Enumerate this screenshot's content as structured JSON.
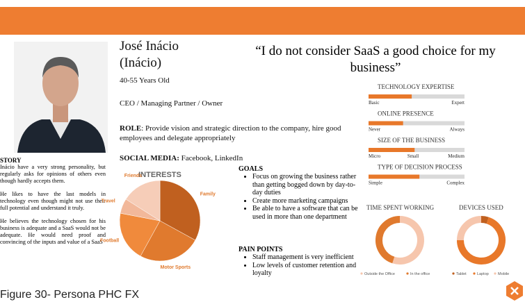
{
  "header": {
    "name": "José Inácio",
    "nickname": "(Inácio)",
    "age": "40-55 Years Old",
    "job": "CEO /  Managing Partner / Owner",
    "role_label": "ROLE",
    "role": ": Provide vision and strategic direction to the company, hire good employees and delegate appropriately",
    "social_label": "SOCIAL MEDIA:",
    "social": " Facebook, LinkedIn"
  },
  "quote": "“I do not consider SaaS a good choice for my business”",
  "story": {
    "title": "STORY",
    "paragraphs": [
      "Inácio have a very strong personality, but regularly asks for opinions of others even though hardly accepts them.",
      "He likes to have the last models in technology even though might not use their full potential and understand it truly.",
      "He believes the technology chosen for his business is adequate and a SaaS would not be adequate. He would need proof and convincing of the inputs and value of a SaaS"
    ]
  },
  "interests": {
    "type": "pie",
    "title": "INTERESTS",
    "categories": [
      "Family",
      "Motor Sports",
      "Football",
      "Travel",
      "Friends"
    ],
    "values": [
      33,
      25,
      20,
      6,
      16
    ],
    "colors": [
      "#c0601f",
      "#e07a2e",
      "#f08a3c",
      "#f2b89a",
      "#f6cdb8"
    ]
  },
  "goals": {
    "title": "GOALS",
    "items": [
      "Focus on growing the business rather than getting bogged down by day-to-day duties",
      "Create more marketing campaigns",
      "Be able to have a software that can be used in more than one department"
    ]
  },
  "pain_points": {
    "title": "PAIN POINTS",
    "items": [
      "Staff management is very inefficient",
      "Low levels of customer retention and loyalty"
    ]
  },
  "scales": [
    {
      "title": "TECHNOLOGY EXPERTISE",
      "labels": [
        "Basic",
        "Expert"
      ],
      "value": 45
    },
    {
      "title": "ONLINE PRESENCE",
      "labels": [
        "Never",
        "Always"
      ],
      "value": 36
    },
    {
      "title": "SIZE OF THE BUSINESS",
      "labels": [
        "Micro",
        "Small",
        "Medium"
      ],
      "value": 48
    },
    {
      "title": "TYPE OF DECISION PROCESS",
      "labels": [
        "Simple",
        "Complex"
      ],
      "value": 53
    }
  ],
  "time_spent": {
    "type": "donut",
    "title": "TIME SPENT WORKING",
    "categories": [
      "Outside the Office",
      "In the office"
    ],
    "values": [
      55,
      45
    ],
    "colors": [
      "#f6c6ad",
      "#e07a2e"
    ]
  },
  "devices": {
    "type": "donut",
    "title": "DEVICES USED",
    "categories": [
      "Tablet",
      "Laptop",
      "Mobile"
    ],
    "values": [
      5,
      70,
      25
    ],
    "colors": [
      "#c0601f",
      "#e8782a",
      "#f6c6ad"
    ]
  },
  "caption": "Figure 30- Persona PHC FX"
}
